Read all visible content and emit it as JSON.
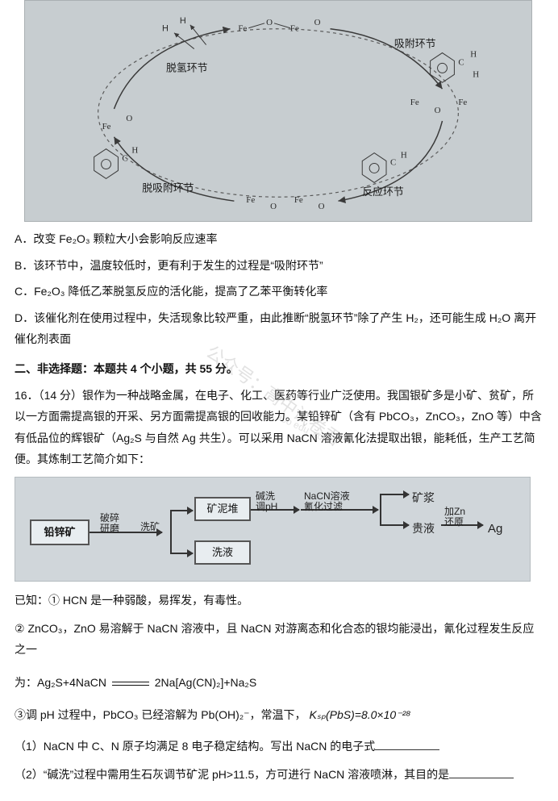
{
  "top_diagram": {
    "bg": "#c7cdd0",
    "labels": [
      "脱氢环节",
      "吸附环节",
      "脱吸附环节",
      "反应环节"
    ],
    "node_text": [
      "Fe",
      "O",
      "H",
      "C"
    ]
  },
  "options": {
    "A": "A．改变 Fe₂O₃ 颗粒大小会影响反应速率",
    "B": "B．该环节中，温度较低时，更有利于发生的过程是“吸附环节”",
    "C": "C．Fe₂O₃ 降低乙苯脱氢反应的活化能，提高了乙苯平衡转化率",
    "D": "D．该催化剂在使用过程中，失活现象比较严重，由此推断“脱氢环节”除了产生 H₂，还可能生成 H₂O 离开催化剂表面"
  },
  "section2_title": "二、非选择题：本题共 4 个小题，共 55 分。",
  "q16_intro": "16．（14 分）银作为一种战略金属，在电子、化工、医药等行业广泛使用。我国银矿多是小矿、贫矿，所以一方面需提高银的开采、另方面需提高银的回收能力。某铅锌矿（含有 PbCO₃，ZnCO₃，ZnO 等）中含有低品位的辉银矿（Ag₂S 与自然 Ag 共生）。可以采用 NaCN 溶液氰化法提取出银，能耗低，生产工艺简便。其炼制工艺简介如下：",
  "process": {
    "boxes": {
      "pbzn": "铅锌矿",
      "mud": "矿泥堆",
      "wash": "洗液"
    },
    "labels": {
      "crush": "破碎\n研磨",
      "washore": "洗矿",
      "alkali": "碱洗\n调pH",
      "nacn": "NaCN溶液\n氰化过滤",
      "slurry": "矿浆",
      "guiye": "贵液",
      "addzn": "加Zn\n还原",
      "ag": "Ag"
    }
  },
  "known_line": "已知：① HCN 是一种弱酸，易挥发，有毒性。",
  "known2": "② ZnCO₃，ZnO 易溶解于 NaCN 溶液中，且 NaCN 对游离态和化合态的银均能浸出，氰化过程发生反应之一",
  "eq_left": "为：Ag₂S+4NaCN",
  "eq_right": "2Na[Ag(CN)₂]+Na₂S",
  "known3_a": "③调 pH 过程中，PbCO₃ 已经溶解为 Pb(OH)₂⁻，常温下，",
  "known3_b": "Kₛₚ(PbS)=8.0×10⁻²⁸",
  "sub_q1": "（1）NaCN 中 C、N 原子均满足 8 电子稳定结构。写出 NaCN 的电子式",
  "sub_q2": "（2）“碱洗”过程中需用生石灰调节矿泥 pH>11.5，方可进行 NaCN 溶液喷淋，其目的是",
  "watermark_main": "公众号：高中试卷君",
  "watermark_small": "aoo edu .com"
}
